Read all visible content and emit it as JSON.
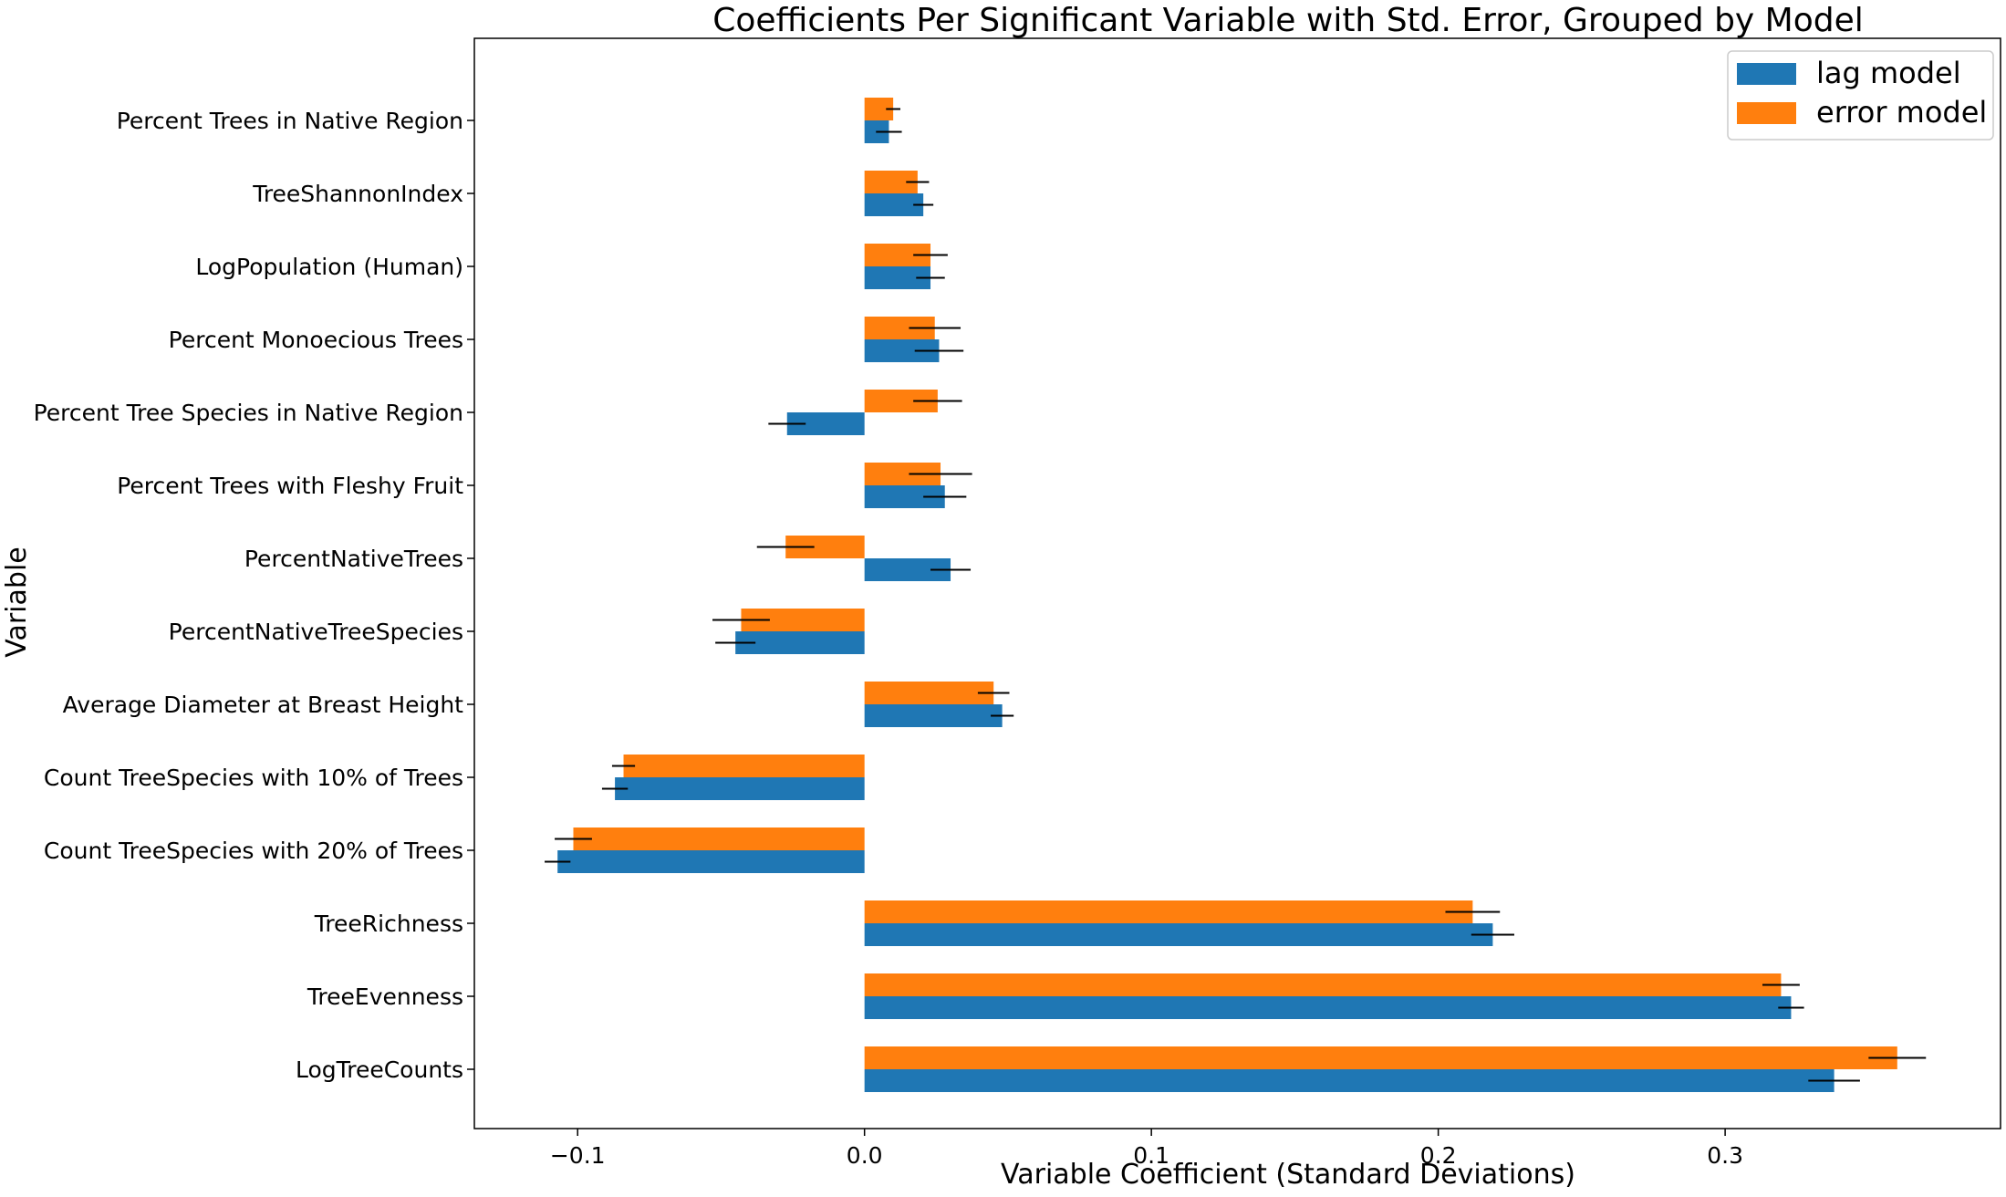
{
  "chart_data": {
    "type": "bar",
    "orientation": "horizontal",
    "title": "Coefficients Per Significant Variable with Std. Error, Grouped by Model",
    "xlabel": "Variable Coefficient (Standard Deviations)",
    "ylabel": "Variable",
    "xlim": [
      -0.136,
      0.396
    ],
    "xticks": [
      -0.1,
      0.0,
      0.1,
      0.2,
      0.3
    ],
    "xtick_labels": [
      "−0.1",
      "0.0",
      "0.1",
      "0.2",
      "0.3"
    ],
    "grid": false,
    "legend_position": "top-right",
    "categories": [
      "Percent Trees in Native Region",
      "TreeShannonIndex",
      "LogPopulation (Human)",
      "Percent Monoecious Trees",
      "Percent Tree Species in Native Region",
      "Percent Trees with Fleshy Fruit",
      "PercentNativeTrees",
      "PercentNativeTreeSpecies",
      "Average Diameter at Breast Height",
      "Count TreeSpecies with 10% of Trees",
      "Count TreeSpecies with 20% of Trees",
      "TreeRichness",
      "TreeEvenness",
      "LogTreeCounts"
    ],
    "series": [
      {
        "name": "lag model",
        "color": "#1f77b4",
        "values": [
          0.0085,
          0.0205,
          0.023,
          0.026,
          -0.027,
          0.028,
          0.03,
          -0.045,
          0.048,
          -0.087,
          -0.107,
          0.219,
          0.323,
          0.338
        ],
        "errors": [
          0.0045,
          0.0035,
          0.005,
          0.0085,
          0.0065,
          0.0075,
          0.007,
          0.007,
          0.004,
          0.0045,
          0.0045,
          0.0075,
          0.0045,
          0.009
        ]
      },
      {
        "name": "error model",
        "color": "#ff7f0e",
        "values": [
          0.01,
          0.0185,
          0.023,
          0.0245,
          0.0255,
          0.0265,
          -0.0275,
          -0.043,
          0.045,
          -0.084,
          -0.1015,
          0.212,
          0.3195,
          0.36
        ],
        "errors": [
          0.0025,
          0.004,
          0.006,
          0.009,
          0.0085,
          0.011,
          0.01,
          0.01,
          0.0055,
          0.004,
          0.0065,
          0.0095,
          0.0065,
          0.01
        ]
      }
    ]
  }
}
